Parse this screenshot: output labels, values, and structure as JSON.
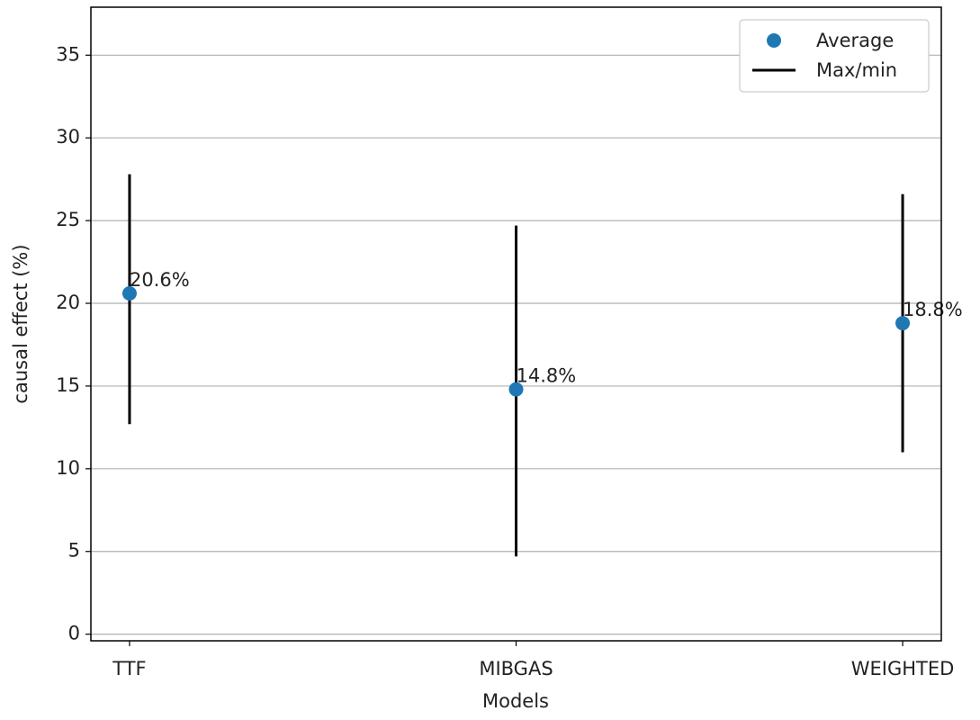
{
  "chart_data": {
    "type": "scatter",
    "xlabel": "Models",
    "ylabel": "causal effect (%)",
    "categories": [
      "TTF",
      "MIBGAS",
      "WEIGHTED"
    ],
    "series": [
      {
        "name": "Average",
        "color": "#1f77b4",
        "values": [
          20.6,
          14.8,
          18.8
        ],
        "value_labels": [
          "20.6%",
          "14.8%",
          "18.8%"
        ]
      },
      {
        "name": "Max/min",
        "color": "#000000",
        "min": [
          12.7,
          4.7,
          11.0
        ],
        "max": [
          27.8,
          24.7,
          26.6
        ]
      }
    ],
    "xlim": [
      -0.1,
      2.1
    ],
    "ylim": [
      -0.4,
      37.9
    ],
    "yticks": [
      0,
      5,
      10,
      15,
      20,
      25,
      30,
      35
    ],
    "grid": "y",
    "legend": "upper right"
  }
}
